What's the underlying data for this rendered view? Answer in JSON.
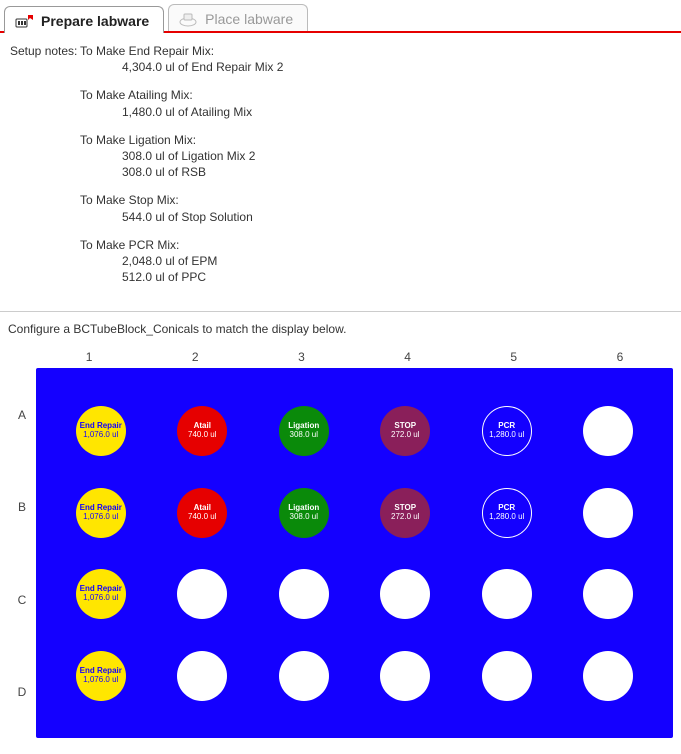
{
  "tabs": [
    {
      "label": "Prepare labware",
      "active": true
    },
    {
      "label": "Place labware",
      "active": false
    }
  ],
  "setup_notes_label": "Setup notes:",
  "mixes": [
    {
      "title": "To Make End Repair Mix:",
      "lines": [
        "4,304.0 ul of End Repair Mix 2"
      ]
    },
    {
      "title": "To Make Atailing Mix:",
      "lines": [
        "1,480.0 ul of Atailing Mix"
      ]
    },
    {
      "title": "To Make Ligation Mix:",
      "lines": [
        "308.0 ul of Ligation Mix 2",
        "308.0 ul of RSB"
      ]
    },
    {
      "title": "To Make Stop Mix:",
      "lines": [
        "544.0 ul of Stop Solution"
      ]
    },
    {
      "title": "To Make PCR Mix:",
      "lines": [
        "2,048.0 ul of EPM",
        "512.0 ul of PPC"
      ]
    }
  ],
  "configure_text": "Configure a BCTubeBlock_Conicals to match the display below.",
  "plate": {
    "cols": [
      "1",
      "2",
      "3",
      "4",
      "5",
      "6"
    ],
    "rows": [
      "A",
      "B",
      "C",
      "D"
    ],
    "background_color": "#1400ff",
    "well_styles": {
      "endrepair": {
        "bg": "#ffe600",
        "fg": "#1400ff"
      },
      "atail": {
        "bg": "#e60000",
        "fg": "#ffffff"
      },
      "ligation": {
        "bg": "#0a8a0a",
        "fg": "#ffffff"
      },
      "stop": {
        "bg": "#8a1f5a",
        "fg": "#ffffff"
      },
      "pcr": {
        "bg": "#1400ff",
        "fg": "#ffffff",
        "border": "#ffffff"
      },
      "empty": {
        "bg": "#ffffff",
        "fg": "#000000"
      }
    },
    "wells": [
      [
        {
          "type": "endrepair",
          "name": "End Repair",
          "vol": "1,076.0 ul"
        },
        {
          "type": "atail",
          "name": "Atail",
          "vol": "740.0 ul"
        },
        {
          "type": "ligation",
          "name": "Ligation",
          "vol": "308.0 ul"
        },
        {
          "type": "stop",
          "name": "STOP",
          "vol": "272.0 ul"
        },
        {
          "type": "pcr",
          "name": "PCR",
          "vol": "1,280.0 ul"
        },
        {
          "type": "empty"
        }
      ],
      [
        {
          "type": "endrepair",
          "name": "End Repair",
          "vol": "1,076.0 ul"
        },
        {
          "type": "atail",
          "name": "Atail",
          "vol": "740.0 ul"
        },
        {
          "type": "ligation",
          "name": "Ligation",
          "vol": "308.0 ul"
        },
        {
          "type": "stop",
          "name": "STOP",
          "vol": "272.0 ul"
        },
        {
          "type": "pcr",
          "name": "PCR",
          "vol": "1,280.0 ul"
        },
        {
          "type": "empty"
        }
      ],
      [
        {
          "type": "endrepair",
          "name": "End Repair",
          "vol": "1,076.0 ul"
        },
        {
          "type": "empty"
        },
        {
          "type": "empty"
        },
        {
          "type": "empty"
        },
        {
          "type": "empty"
        },
        {
          "type": "empty"
        }
      ],
      [
        {
          "type": "endrepair",
          "name": "End Repair",
          "vol": "1,076.0 ul"
        },
        {
          "type": "empty"
        },
        {
          "type": "empty"
        },
        {
          "type": "empty"
        },
        {
          "type": "empty"
        },
        {
          "type": "empty"
        }
      ]
    ]
  }
}
